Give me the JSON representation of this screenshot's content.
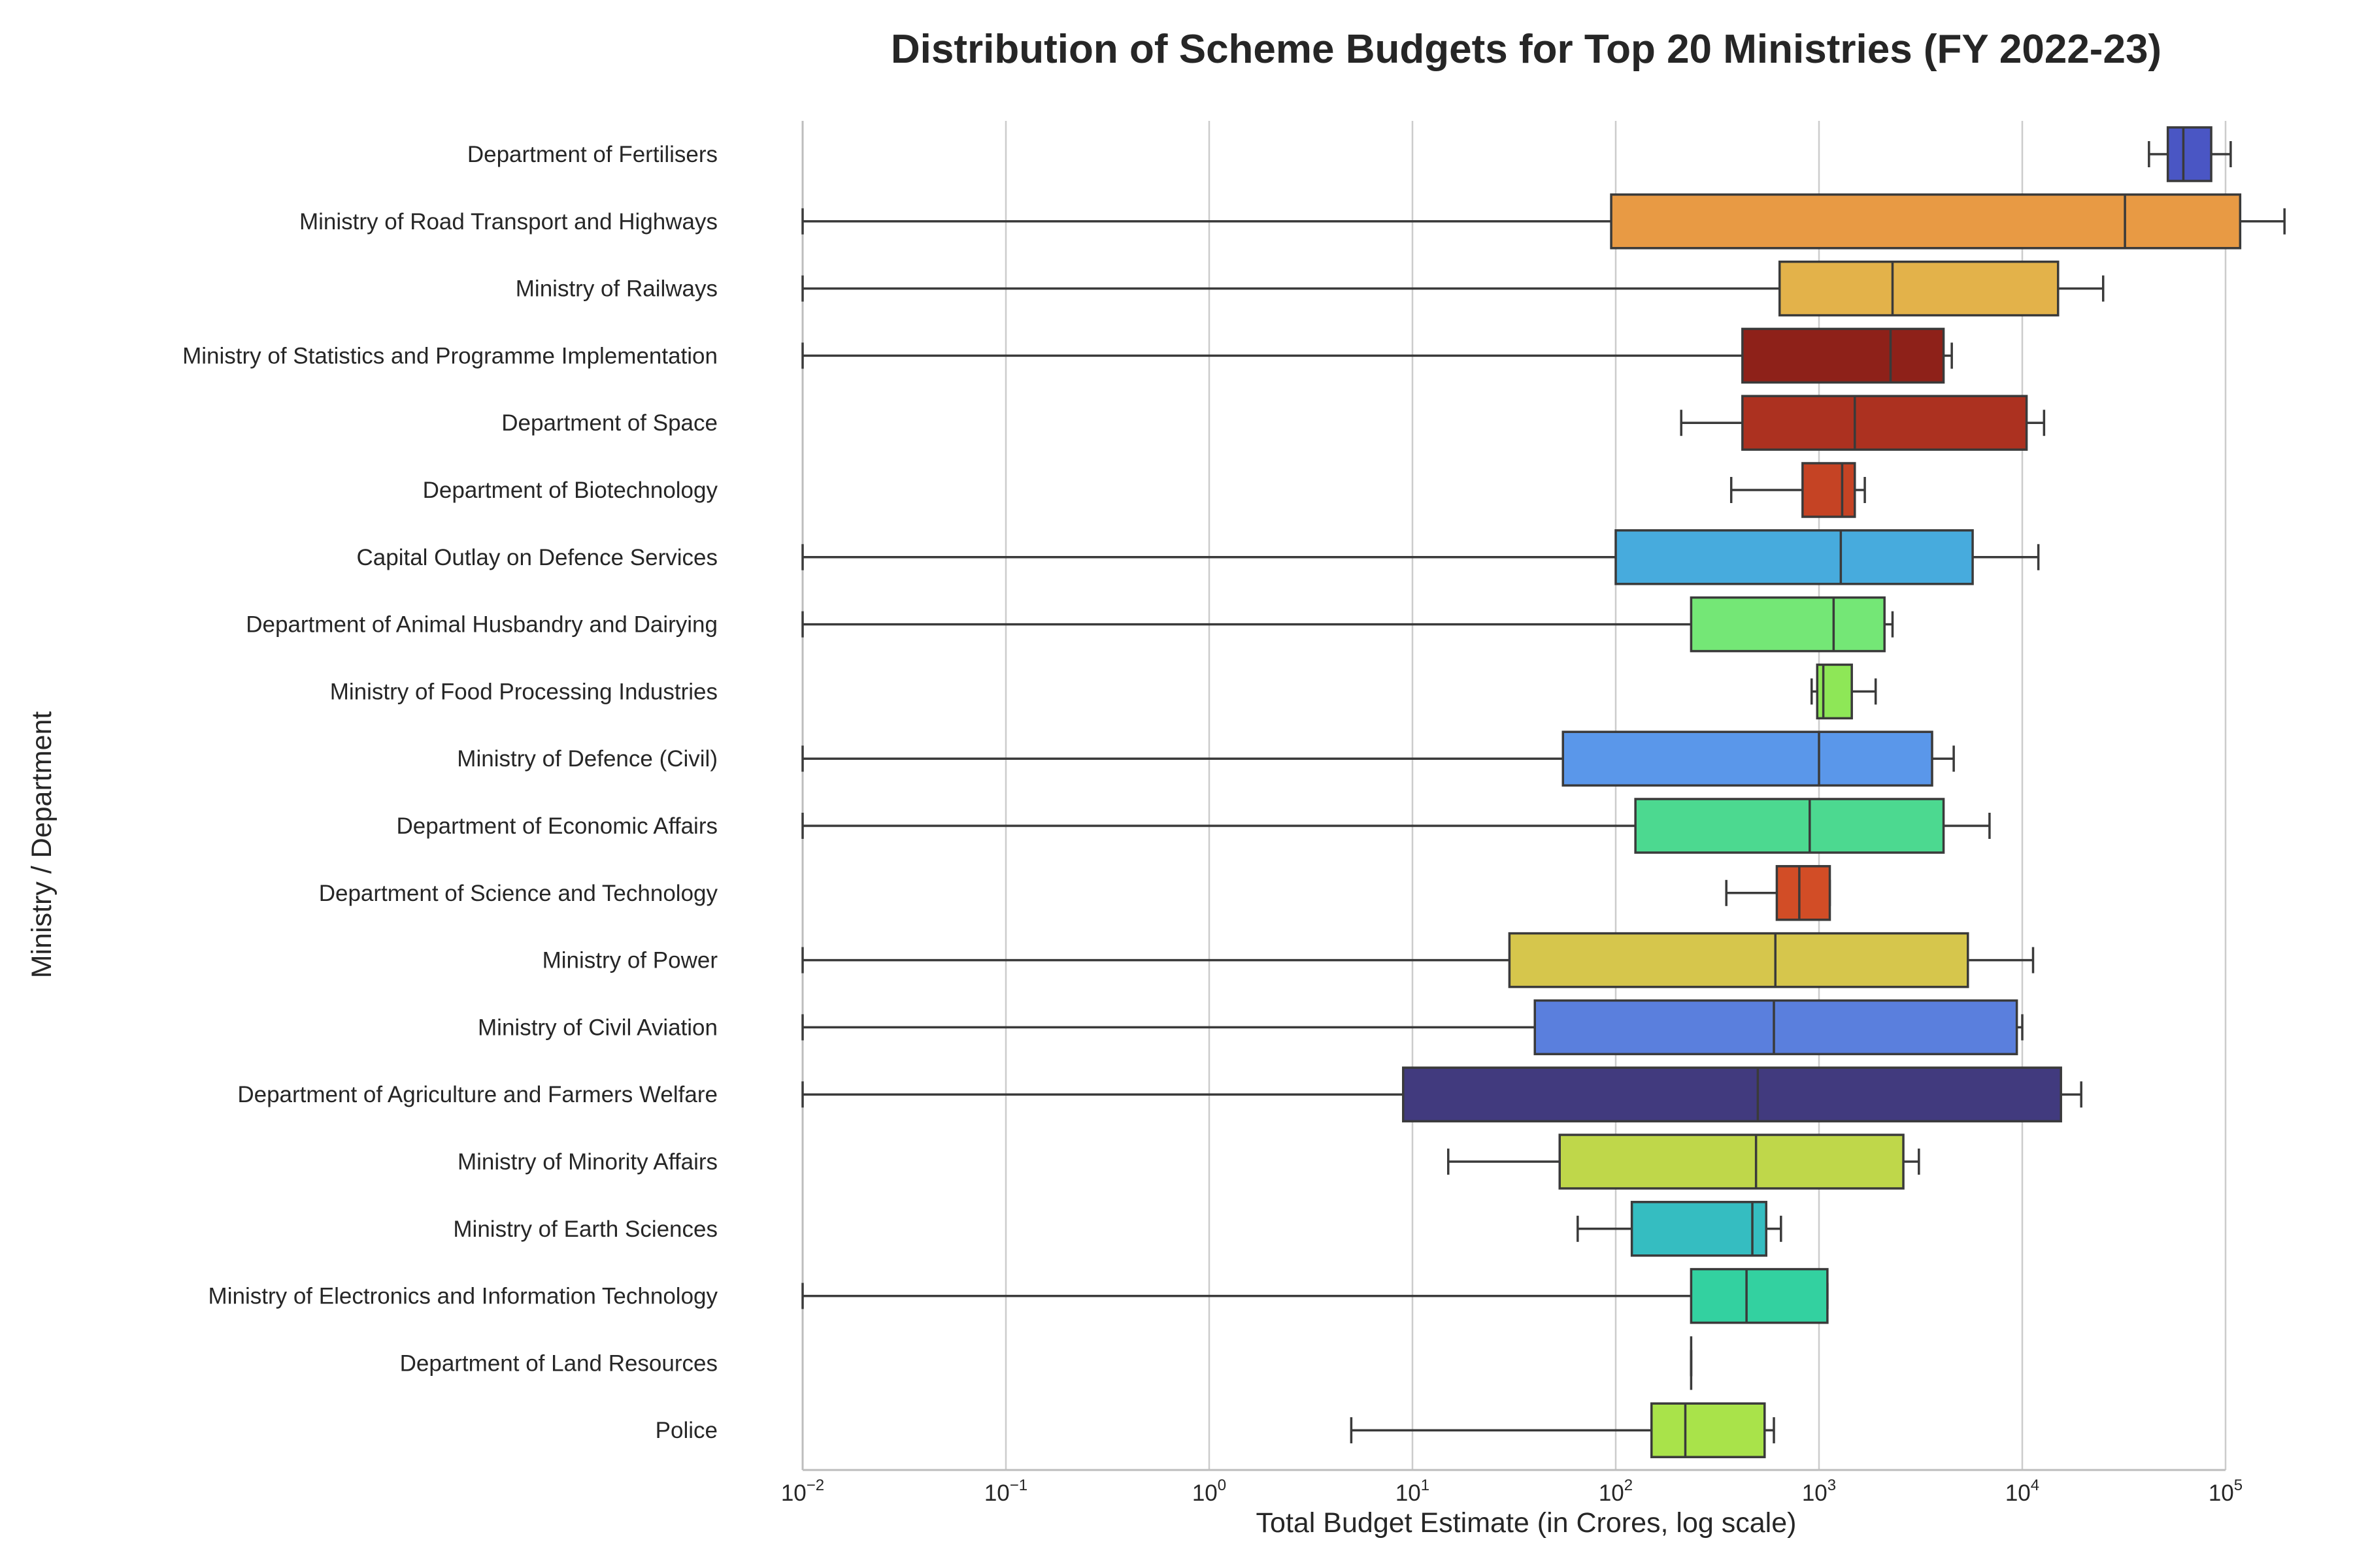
{
  "chart_data": {
    "type": "box",
    "orientation": "horizontal",
    "title": "Distribution of Scheme Budgets for Top 20 Ministries (FY 2022-23)",
    "xlabel": "Total Budget Estimate (in Crores, log scale)",
    "ylabel": "Ministry / Department",
    "x_scale": "log",
    "xlim": [
      0.01,
      100000
    ],
    "x_ticks": [
      {
        "base": "10",
        "exp": "−2",
        "value": 0.01
      },
      {
        "base": "10",
        "exp": "−1",
        "value": 0.1
      },
      {
        "base": "10",
        "exp": "0",
        "value": 1
      },
      {
        "base": "10",
        "exp": "1",
        "value": 10
      },
      {
        "base": "10",
        "exp": "2",
        "value": 100
      },
      {
        "base": "10",
        "exp": "3",
        "value": 1000
      },
      {
        "base": "10",
        "exp": "4",
        "value": 10000
      },
      {
        "base": "10",
        "exp": "5",
        "value": 100000
      }
    ],
    "grid": true,
    "categories": [
      {
        "name": "Department of Fertilisers",
        "min": 42000,
        "q1": 52000,
        "median": 62000,
        "q3": 85000,
        "max": 106000,
        "color": "#4a56c4"
      },
      {
        "name": "Ministry of Road Transport and Highways",
        "min": 0.01,
        "q1": 95,
        "median": 32000,
        "q3": 118000,
        "max": 195000,
        "color": "#e89a44"
      },
      {
        "name": "Ministry of Railways",
        "min": 0.01,
        "q1": 640,
        "median": 2300,
        "q3": 15000,
        "max": 25000,
        "color": "#e3b24a"
      },
      {
        "name": "Ministry of Statistics and Programme Implementation",
        "min": 0.01,
        "q1": 420,
        "median": 2250,
        "q3": 4100,
        "max": 4500,
        "color": "#8e2119"
      },
      {
        "name": "Department of Space",
        "min": 210,
        "q1": 420,
        "median": 1500,
        "q3": 10500,
        "max": 12800,
        "color": "#ac3120"
      },
      {
        "name": "Department of Biotechnology",
        "min": 370,
        "q1": 830,
        "median": 1300,
        "q3": 1500,
        "max": 1680,
        "color": "#c54324"
      },
      {
        "name": "Capital Outlay on Defence Services",
        "min": 0.01,
        "q1": 100,
        "median": 1280,
        "q3": 5700,
        "max": 12000,
        "color": "#47abdd"
      },
      {
        "name": "Department of Animal Husbandry and Dairying",
        "min": 0.01,
        "q1": 235,
        "median": 1180,
        "q3": 2100,
        "max": 2300,
        "color": "#74e776"
      },
      {
        "name": "Ministry of Food Processing Industries",
        "min": 920,
        "q1": 980,
        "median": 1050,
        "q3": 1450,
        "max": 1900,
        "color": "#8ee757"
      },
      {
        "name": "Ministry of Defence (Civil)",
        "min": 0.01,
        "q1": 55,
        "median": 1000,
        "q3": 3600,
        "max": 4600,
        "color": "#5a97ea"
      },
      {
        "name": "Department of Economic Affairs",
        "min": 0.01,
        "q1": 125,
        "median": 900,
        "q3": 4100,
        "max": 6900,
        "color": "#4cd990"
      },
      {
        "name": "Department of Science and Technology",
        "min": 350,
        "q1": 620,
        "median": 800,
        "q3": 1130,
        "max": 1130,
        "color": "#d24d26"
      },
      {
        "name": "Ministry of Power",
        "min": 0.01,
        "q1": 30,
        "median": 610,
        "q3": 5400,
        "max": 11300,
        "color": "#d6c64c"
      },
      {
        "name": "Ministry of Civil Aviation",
        "min": 0.01,
        "q1": 40,
        "median": 600,
        "q3": 9400,
        "max": 10000,
        "color": "#5a7fdd"
      },
      {
        "name": "Department of Agriculture and Farmers Welfare",
        "min": 0.01,
        "q1": 9,
        "median": 500,
        "q3": 15500,
        "max": 19500,
        "color": "#413a7e"
      },
      {
        "name": "Ministry of Minority Affairs",
        "min": 15,
        "q1": 53,
        "median": 490,
        "q3": 2600,
        "max": 3100,
        "color": "#bfd74a"
      },
      {
        "name": "Ministry of Earth Sciences",
        "min": 65,
        "q1": 120,
        "median": 470,
        "q3": 550,
        "max": 650,
        "color": "#35bdc1"
      },
      {
        "name": "Ministry of Electronics and Information Technology",
        "min": 0.01,
        "q1": 235,
        "median": 440,
        "q3": 1100,
        "max": 1100,
        "color": "#33d1a0"
      },
      {
        "name": "Department of Land Resources",
        "min": 235,
        "q1": 235,
        "median": 235,
        "q3": 235,
        "max": 235,
        "color": "#4ad59a"
      },
      {
        "name": "Police",
        "min": 5,
        "q1": 150,
        "median": 220,
        "q3": 540,
        "max": 600,
        "color": "#a9e34a"
      }
    ]
  }
}
